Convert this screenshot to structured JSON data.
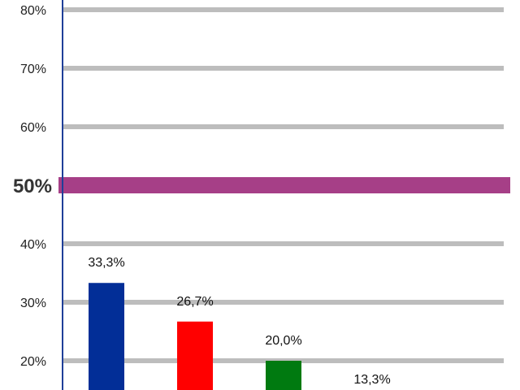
{
  "chart_data": {
    "type": "bar",
    "title": "",
    "xlabel": "",
    "ylabel": "",
    "ylim": [
      20,
      80
    ],
    "y_ticks": [
      {
        "value": 80,
        "label": "80%"
      },
      {
        "value": 70,
        "label": "70%"
      },
      {
        "value": 60,
        "label": "60%"
      },
      {
        "value": 50,
        "label": "50%"
      },
      {
        "value": 40,
        "label": "40%"
      },
      {
        "value": 30,
        "label": "30%"
      },
      {
        "value": 20,
        "label": "20%"
      }
    ],
    "grid": true,
    "reference_line": {
      "value": 50,
      "color": "#a63f87"
    },
    "categories": [
      "",
      "",
      "",
      ""
    ],
    "values": [
      33.3,
      26.7,
      20.0,
      13.3
    ],
    "value_labels": [
      "33,3%",
      "26,7%",
      "20,0%",
      "13,3%"
    ],
    "colors": [
      "#022e97",
      "#ff0000",
      "#007a10",
      "#7f7f7f"
    ],
    "grid_color": "#bdbdbd",
    "axis_color": "#1f3f99"
  }
}
